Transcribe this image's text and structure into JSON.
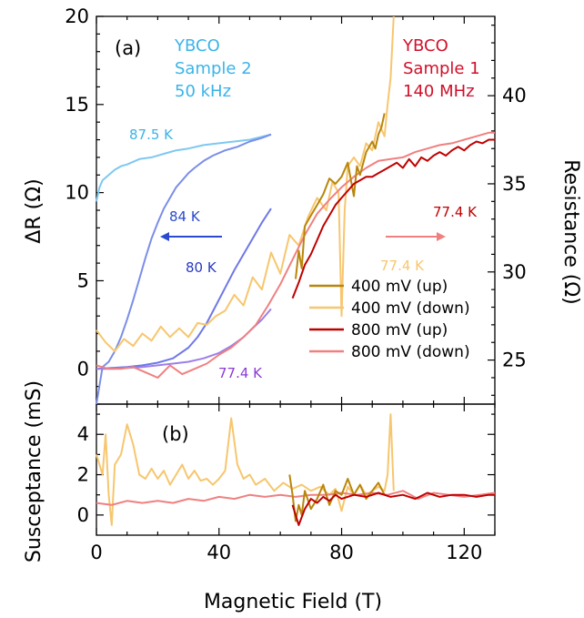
{
  "chart_data": [
    {
      "panel": "(a)",
      "type": "line",
      "xlabel": "Magnetic Field (T)",
      "ylabel": "ΔR (Ω)",
      "ylabel_right": "Resistance (Ω)",
      "xlim": [
        0,
        130
      ],
      "ylim": [
        -2,
        20
      ],
      "ylim_right": [
        22.5,
        44.5
      ],
      "x_ticks": [
        0,
        40,
        80,
        120
      ],
      "y_ticks": [
        0,
        5,
        10,
        15,
        20
      ],
      "y_ticks_right": [
        25,
        30,
        35,
        40
      ],
      "legend_position": "lower-right",
      "annotations": {
        "sample_2": [
          "YBCO",
          "Sample 2",
          "50 kHz"
        ],
        "sample_1": [
          "YBCO",
          "Sample 1",
          "140 MHz"
        ],
        "t_87": "87.5 K",
        "t_84": "84 K",
        "t_80": "80 K",
        "t_77_left": "77.4 K",
        "t_77_orange": "77.4 K",
        "t_77_red": "77.4 K"
      },
      "colors": {
        "t87": "#7ec8f0",
        "t84": "#7b8ee8",
        "t80": "#6f78e6",
        "t77": "#9b80e8",
        "up400": "#b8860b",
        "down400": "#f7c66e",
        "up800": "#c00000",
        "down800": "#f08080",
        "label84": "#2a4ad0",
        "label80": "#2a3ac0",
        "label77": "#8a3ad8",
        "sample2": "#3ab4e8",
        "sample1": "#d0102a"
      },
      "series": [
        {
          "key": "t87",
          "axis": "left",
          "x": [
            0,
            1,
            2,
            4,
            6,
            8,
            10,
            14,
            18,
            22,
            26,
            30,
            35,
            40,
            45,
            50,
            57
          ],
          "y": [
            9.5,
            10.3,
            10.7,
            11.0,
            11.3,
            11.5,
            11.6,
            11.9,
            12.0,
            12.2,
            12.4,
            12.5,
            12.7,
            12.8,
            12.9,
            13.0,
            13.3
          ]
        },
        {
          "key": "t84",
          "axis": "left",
          "x": [
            0,
            2,
            4,
            6,
            8,
            10,
            12,
            14,
            16,
            18,
            20,
            22,
            24,
            26,
            28,
            30,
            32,
            35,
            38,
            42,
            46,
            50,
            54,
            57
          ],
          "y": [
            -2,
            0.1,
            0.4,
            1.0,
            1.8,
            2.8,
            3.9,
            5.1,
            6.3,
            7.4,
            8.3,
            9.1,
            9.7,
            10.3,
            10.7,
            11.1,
            11.4,
            11.8,
            12.1,
            12.4,
            12.6,
            12.9,
            13.1,
            13.3
          ]
        },
        {
          "key": "t80",
          "axis": "left",
          "x": [
            0,
            5,
            10,
            15,
            20,
            25,
            30,
            33,
            36,
            39,
            42,
            45,
            48,
            51,
            54,
            57
          ],
          "y": [
            0,
            0.05,
            0.1,
            0.2,
            0.35,
            0.6,
            1.2,
            1.8,
            2.6,
            3.6,
            4.6,
            5.6,
            6.5,
            7.4,
            8.3,
            9.1
          ]
        },
        {
          "key": "t77",
          "axis": "left",
          "x": [
            0,
            5,
            10,
            15,
            20,
            25,
            30,
            35,
            40,
            44,
            48,
            51,
            54,
            57
          ],
          "y": [
            0,
            0,
            0.05,
            0.1,
            0.2,
            0.3,
            0.4,
            0.6,
            0.9,
            1.3,
            1.8,
            2.3,
            2.8,
            3.4
          ]
        },
        {
          "key": "down400",
          "axis": "left",
          "x": [
            0,
            3,
            6,
            9,
            12,
            15,
            18,
            21,
            24,
            27,
            30,
            33,
            36,
            39,
            42,
            45,
            48,
            51,
            54,
            57,
            60,
            63,
            66,
            69,
            72,
            75,
            77,
            79,
            80,
            81,
            82,
            84,
            86,
            88,
            90,
            92,
            94,
            95,
            96,
            97
          ],
          "y": [
            2.2,
            1.5,
            1.0,
            1.7,
            1.3,
            2.0,
            1.6,
            2.4,
            1.8,
            2.3,
            1.8,
            2.6,
            2.5,
            3.0,
            3.3,
            4.2,
            3.6,
            5.2,
            4.5,
            6.6,
            5.4,
            7.6,
            7.0,
            8.6,
            9.7,
            9.0,
            10.6,
            10.0,
            3.0,
            9.0,
            11.5,
            12.0,
            11.5,
            12.8,
            12.4,
            14.0,
            13.2,
            15.0,
            16.5,
            20.0
          ]
        },
        {
          "key": "down800",
          "axis": "left",
          "x": [
            0,
            4,
            8,
            12,
            16,
            20,
            24,
            28,
            32,
            36,
            40,
            44,
            48,
            52,
            56,
            60,
            64,
            68,
            72,
            76,
            80,
            84,
            88,
            92,
            96,
            100,
            104,
            108,
            112,
            116,
            120,
            124,
            128,
            130
          ],
          "y": [
            0.2,
            0.0,
            0.0,
            0.1,
            -0.2,
            -0.5,
            0.2,
            -0.3,
            0.0,
            0.3,
            0.8,
            1.2,
            1.8,
            2.5,
            3.6,
            4.8,
            6.2,
            7.6,
            8.8,
            9.6,
            10.3,
            10.9,
            11.4,
            11.8,
            11.9,
            12.0,
            12.3,
            12.5,
            12.7,
            12.8,
            13.0,
            13.2,
            13.4,
            13.4
          ]
        },
        {
          "key": "up400",
          "axis": "right",
          "x": [
            65,
            66,
            67,
            68,
            70,
            72,
            74,
            76,
            78,
            80,
            82,
            84,
            85,
            86,
            88,
            90,
            91,
            92,
            93,
            94
          ],
          "y": [
            29.6,
            31.2,
            30.2,
            32.6,
            33.2,
            33.8,
            34.4,
            35.3,
            35.0,
            35.4,
            36.2,
            34.3,
            36.0,
            35.5,
            36.8,
            37.4,
            37.0,
            37.8,
            38.2,
            39.0
          ]
        },
        {
          "key": "up800",
          "axis": "right",
          "x": [
            64,
            66,
            68,
            70,
            72,
            74,
            76,
            78,
            80,
            82,
            84,
            86,
            88,
            90,
            92,
            94,
            96,
            98,
            100,
            102,
            104,
            106,
            108,
            110,
            112,
            114,
            116,
            118,
            120,
            122,
            124,
            126,
            128,
            130
          ],
          "y": [
            28.5,
            29.4,
            30.4,
            31.0,
            31.8,
            32.6,
            33.2,
            33.8,
            34.2,
            34.6,
            35.0,
            35.2,
            35.4,
            35.4,
            35.6,
            35.8,
            36.0,
            36.2,
            35.9,
            36.4,
            36.0,
            36.5,
            36.3,
            36.6,
            36.8,
            36.6,
            36.9,
            37.1,
            36.9,
            37.2,
            37.4,
            37.3,
            37.5,
            37.5
          ]
        }
      ],
      "legend": [
        {
          "key": "up400",
          "label": "400 mV (up)"
        },
        {
          "key": "down400",
          "label": "400 mV (down)"
        },
        {
          "key": "up800",
          "label": "800 mV (up)"
        },
        {
          "key": "down800",
          "label": "800 mV (down)"
        }
      ]
    },
    {
      "panel": "(b)",
      "type": "line",
      "xlabel": "Magnetic Field (T)",
      "ylabel": "Susceptance (mS)",
      "xlim": [
        0,
        130
      ],
      "ylim": [
        -1,
        5.5
      ],
      "y_ticks": [
        0,
        2,
        4
      ],
      "x_ticks": [
        0,
        40,
        80,
        120
      ],
      "series": [
        {
          "key": "down400",
          "x": [
            0,
            2,
            3,
            4,
            5,
            6,
            8,
            10,
            12,
            14,
            16,
            18,
            20,
            22,
            24,
            26,
            28,
            30,
            32,
            34,
            36,
            38,
            40,
            42,
            44,
            46,
            48,
            50,
            52,
            55,
            58,
            61,
            64,
            67,
            70,
            73,
            76,
            78,
            80,
            82,
            84,
            86,
            88,
            90,
            92,
            94,
            95,
            96,
            97
          ],
          "y": [
            3.0,
            2.0,
            4.0,
            1.0,
            -0.5,
            2.5,
            3.0,
            4.5,
            3.5,
            2.0,
            1.8,
            2.3,
            1.8,
            2.2,
            1.5,
            2.0,
            2.5,
            1.8,
            2.2,
            1.7,
            1.8,
            1.5,
            1.8,
            2.2,
            4.8,
            2.5,
            1.8,
            2.0,
            1.5,
            1.8,
            1.2,
            1.6,
            1.3,
            1.5,
            1.2,
            1.4,
            1.0,
            1.3,
            0.2,
            1.4,
            1.0,
            1.5,
            1.0,
            1.2,
            1.4,
            1.2,
            2.0,
            5.0,
            1.2
          ]
        },
        {
          "key": "down800",
          "x": [
            0,
            5,
            10,
            15,
            20,
            25,
            30,
            35,
            40,
            45,
            50,
            55,
            60,
            65,
            70,
            75,
            80,
            85,
            90,
            95,
            100,
            105,
            110,
            115,
            120,
            125,
            130
          ],
          "y": [
            0.6,
            0.5,
            0.7,
            0.6,
            0.7,
            0.6,
            0.8,
            0.7,
            0.9,
            0.8,
            1.0,
            0.9,
            1.0,
            0.9,
            1.0,
            1.0,
            1.1,
            1.0,
            1.1,
            1.0,
            1.2,
            0.8,
            1.1,
            1.0,
            0.9,
            1.0,
            1.1
          ]
        },
        {
          "key": "up400",
          "x": [
            63,
            64,
            65,
            66,
            67,
            68,
            70,
            72,
            74,
            76,
            78,
            80,
            82,
            84,
            86,
            88,
            90,
            92,
            94
          ],
          "y": [
            2.0,
            1.0,
            -0.3,
            0.5,
            0.0,
            1.2,
            0.3,
            0.8,
            1.5,
            0.5,
            1.2,
            1.0,
            1.8,
            1.0,
            1.5,
            0.8,
            1.2,
            1.6,
            1.0
          ]
        },
        {
          "key": "up800",
          "x": [
            64,
            66,
            68,
            70,
            72,
            74,
            76,
            78,
            80,
            84,
            88,
            92,
            96,
            100,
            104,
            108,
            112,
            116,
            120,
            124,
            128,
            130
          ],
          "y": [
            0.5,
            -0.5,
            0.3,
            0.8,
            0.6,
            0.9,
            0.7,
            1.0,
            0.8,
            1.0,
            0.9,
            1.1,
            0.9,
            1.0,
            0.8,
            1.1,
            0.9,
            1.0,
            1.0,
            0.9,
            1.0,
            1.0
          ]
        }
      ]
    }
  ]
}
